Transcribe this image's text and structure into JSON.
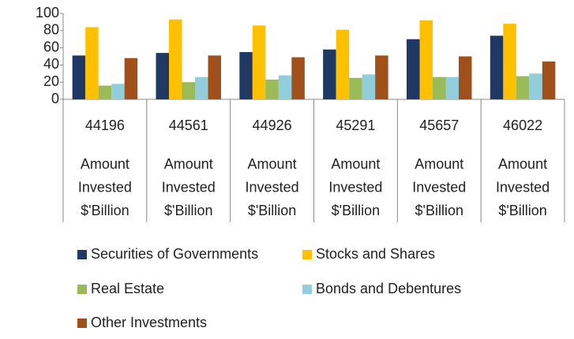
{
  "chart_data": {
    "type": "bar",
    "categories": [
      "44196",
      "44561",
      "44926",
      "45291",
      "45657",
      "46022"
    ],
    "sublabels": [
      [
        "Amount",
        "Invested",
        "$'Billion"
      ],
      [
        "Amount",
        "Invested",
        "$'Billion"
      ],
      [
        "Amount",
        "Invested",
        "$'Billion"
      ],
      [
        "Amount",
        "Invested",
        "$'Billion"
      ],
      [
        "Amount",
        "Invested",
        "$'Billion"
      ],
      [
        "Amount",
        "Invested",
        "$'Billion"
      ]
    ],
    "series": [
      {
        "name": "Securities of Governments",
        "color": "#1f3864",
        "values": [
          51,
          54,
          55,
          58,
          70,
          74
        ]
      },
      {
        "name": "Stocks and Shares",
        "color": "#ffc000",
        "values": [
          84,
          93,
          86,
          81,
          92,
          88
        ]
      },
      {
        "name": "Real Estate",
        "color": "#9bbb59",
        "values": [
          16,
          20,
          23,
          25,
          26,
          27
        ]
      },
      {
        "name": "Bonds and Debentures",
        "color": "#92cddc",
        "values": [
          18,
          26,
          28,
          29,
          26,
          30
        ]
      },
      {
        "name": "Other Investments",
        "color": "#a0501a",
        "values": [
          48,
          51,
          49,
          51,
          50,
          44
        ]
      }
    ],
    "ylim": [
      0,
      100
    ],
    "yticks": [
      0,
      20,
      40,
      60,
      80,
      100
    ],
    "legend": "bottom"
  }
}
